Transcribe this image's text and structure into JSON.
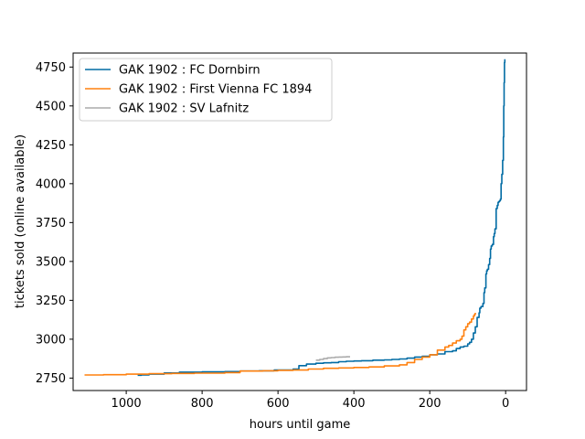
{
  "chart_data": {
    "type": "line",
    "title": "",
    "xlabel": "hours until game",
    "ylabel": "tickets sold (online available)",
    "xlim": [
      1140,
      -55
    ],
    "ylim": [
      2670,
      4840
    ],
    "x_reversed": true,
    "xticks": [
      1000,
      800,
      600,
      400,
      200,
      0
    ],
    "yticks": [
      2750,
      3000,
      3250,
      3500,
      3750,
      4000,
      4250,
      4500,
      4750
    ],
    "grid": false,
    "legend_position": "top-left",
    "series": [
      {
        "name": "GAK 1902 : FC Dornbirn",
        "color": "#006ba4",
        "x": [
          970,
          960,
          940,
          900,
          860,
          800,
          740,
          700,
          650,
          610,
          560,
          545,
          525,
          500,
          480,
          460,
          440,
          420,
          400,
          380,
          350,
          320,
          300,
          280,
          260,
          240,
          220,
          200,
          180,
          160,
          140,
          130,
          120,
          110,
          100,
          95,
          90,
          85,
          80,
          75,
          70,
          68,
          65,
          60,
          57,
          55,
          52,
          50,
          48,
          45,
          42,
          40,
          38,
          35,
          32,
          30,
          28,
          25,
          22,
          20,
          18,
          16,
          14,
          12,
          10,
          8,
          6,
          5,
          4,
          3,
          2
        ],
        "y": [
          2768,
          2770,
          2775,
          2783,
          2788,
          2790,
          2792,
          2795,
          2797,
          2802,
          2808,
          2830,
          2840,
          2845,
          2848,
          2850,
          2855,
          2858,
          2860,
          2862,
          2865,
          2867,
          2870,
          2873,
          2878,
          2885,
          2890,
          2900,
          2905,
          2920,
          2925,
          2940,
          2950,
          2955,
          2970,
          2980,
          3000,
          3040,
          3080,
          3140,
          3170,
          3200,
          3210,
          3230,
          3300,
          3330,
          3420,
          3440,
          3450,
          3480,
          3520,
          3580,
          3600,
          3610,
          3660,
          3680,
          3710,
          3840,
          3860,
          3880,
          3885,
          3890,
          3900,
          4000,
          4060,
          4150,
          4300,
          4500,
          4650,
          4780,
          4800
        ]
      },
      {
        "name": "GAK 1902 : First Vienna FC 1894",
        "color": "#ff800e",
        "x": [
          1110,
          1060,
          1000,
          940,
          880,
          820,
          740,
          700,
          640,
          600,
          560,
          520,
          480,
          440,
          400,
          360,
          320,
          280,
          260,
          240,
          220,
          200,
          180,
          160,
          150,
          140,
          130,
          120,
          115,
          110,
          105,
          100,
          95,
          90,
          85,
          82,
          80
        ],
        "y": [
          2770,
          2772,
          2775,
          2778,
          2780,
          2782,
          2785,
          2795,
          2797,
          2800,
          2802,
          2808,
          2813,
          2815,
          2818,
          2822,
          2828,
          2835,
          2850,
          2870,
          2885,
          2900,
          2930,
          2950,
          2960,
          2975,
          2990,
          3000,
          3020,
          3060,
          3080,
          3100,
          3110,
          3130,
          3150,
          3160,
          3170
        ]
      },
      {
        "name": "GAK 1902 : SV Lafnitz",
        "color": "#ababab",
        "x": [
          500,
          490,
          480,
          470,
          460,
          450,
          440,
          430,
          420,
          410
        ],
        "y": [
          2865,
          2870,
          2875,
          2880,
          2882,
          2884,
          2885,
          2886,
          2887,
          2887
        ]
      }
    ]
  }
}
